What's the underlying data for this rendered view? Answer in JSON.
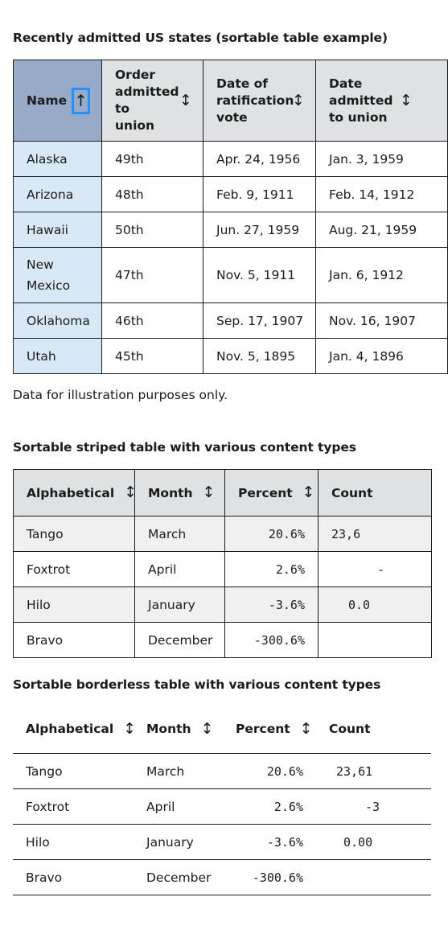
{
  "table1": {
    "caption": "Recently admitted US states (sortable table example)",
    "headers": [
      {
        "label": "Name",
        "sorted": true,
        "sort_icon": "↑"
      },
      {
        "label": "Order admitted to union",
        "sort_icon": "↕"
      },
      {
        "label": "Date of ratification vote",
        "sort_icon": "↕"
      },
      {
        "label": "Date admitted to union",
        "sort_icon": "↕"
      }
    ],
    "rows": [
      [
        "Alaska",
        "49th",
        "Apr. 24, 1956",
        "Jan. 3, 1959"
      ],
      [
        "Arizona",
        "48th",
        "Feb. 9, 1911",
        "Feb. 14, 1912"
      ],
      [
        "Hawaii",
        "50th",
        "Jun. 27, 1959",
        "Aug. 21, 1959"
      ],
      [
        "New Mexico",
        "47th",
        "Nov. 5, 1911",
        "Jan. 6, 1912"
      ],
      [
        "Oklahoma",
        "46th",
        "Sep. 17, 1907",
        "Nov. 16, 1907"
      ],
      [
        "Utah",
        "45th",
        "Nov. 5, 1895",
        "Jan. 4, 1896"
      ]
    ],
    "footnote": "Data for illustration purposes only."
  },
  "table2": {
    "caption": "Sortable striped table with various content types",
    "headers": [
      "Alphabetical",
      "Month",
      "Percent",
      "Count"
    ],
    "sort_icon": "↕",
    "rows": [
      [
        "Tango",
        "March",
        "20.6%",
        "23,6"
      ],
      [
        "Foxtrot",
        "April",
        "2.6%",
        "-"
      ],
      [
        "Hilo",
        "January",
        "-3.6%",
        "0.0"
      ],
      [
        "Bravo",
        "December",
        "-300.6%",
        ""
      ]
    ]
  },
  "table3": {
    "caption": "Sortable borderless table with various content types",
    "headers": [
      "Alphabetical",
      "Month",
      "Percent",
      "Count"
    ],
    "sort_icon": "↕",
    "rows": [
      [
        "Tango",
        "March",
        "20.6%",
        "23,61"
      ],
      [
        "Foxtrot",
        "April",
        "2.6%",
        "-3"
      ],
      [
        "Hilo",
        "January",
        "-3.6%",
        "0.00"
      ],
      [
        "Bravo",
        "December",
        "-300.6%",
        ""
      ]
    ]
  }
}
